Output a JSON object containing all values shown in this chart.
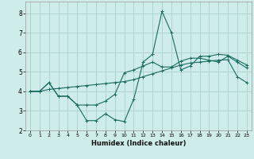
{
  "xlabel": "Humidex (Indice chaleur)",
  "background_color": "#cdecea",
  "grid_color": "#afd4d0",
  "line_color": "#1a6b5e",
  "xlim": [
    -0.5,
    23.5
  ],
  "ylim": [
    2.0,
    8.6
  ],
  "yticks": [
    2,
    3,
    4,
    5,
    6,
    7,
    8
  ],
  "xtick_labels": [
    "0",
    "1",
    "2",
    "3",
    "4",
    "5",
    "6",
    "7",
    "8",
    "9",
    "10",
    "11",
    "12",
    "13",
    "14",
    "15",
    "16",
    "17",
    "18",
    "19",
    "20",
    "21",
    "22",
    "23"
  ],
  "line1_x": [
    0,
    1,
    2,
    3,
    4,
    5,
    6,
    7,
    8,
    9,
    10,
    11,
    12,
    13,
    14,
    15,
    16,
    17,
    18,
    19,
    20,
    21,
    22,
    23
  ],
  "line1_y": [
    4.0,
    4.0,
    4.45,
    3.75,
    3.75,
    3.3,
    2.5,
    2.5,
    2.85,
    2.55,
    2.45,
    3.6,
    5.5,
    5.9,
    8.1,
    7.0,
    5.1,
    5.3,
    5.8,
    5.8,
    5.9,
    5.85,
    5.6,
    5.35
  ],
  "line2_x": [
    0,
    1,
    2,
    3,
    4,
    5,
    6,
    7,
    8,
    9,
    10,
    11,
    12,
    13,
    14,
    15,
    16,
    17,
    18,
    19,
    20,
    21,
    22,
    23
  ],
  "line2_y": [
    4.0,
    4.0,
    4.1,
    4.15,
    4.2,
    4.25,
    4.3,
    4.35,
    4.4,
    4.45,
    4.5,
    4.6,
    4.75,
    4.9,
    5.05,
    5.2,
    5.35,
    5.45,
    5.5,
    5.55,
    5.6,
    5.62,
    4.75,
    4.45
  ],
  "line3_x": [
    0,
    1,
    2,
    3,
    4,
    5,
    6,
    7,
    8,
    9,
    10,
    11,
    12,
    13,
    14,
    15,
    16,
    17,
    18,
    19,
    20,
    21,
    22,
    23
  ],
  "line3_y": [
    4.0,
    4.0,
    4.45,
    3.75,
    3.75,
    3.3,
    3.3,
    3.3,
    3.5,
    3.85,
    4.95,
    5.1,
    5.3,
    5.5,
    5.25,
    5.25,
    5.55,
    5.7,
    5.7,
    5.6,
    5.5,
    5.8,
    5.5,
    5.2
  ]
}
